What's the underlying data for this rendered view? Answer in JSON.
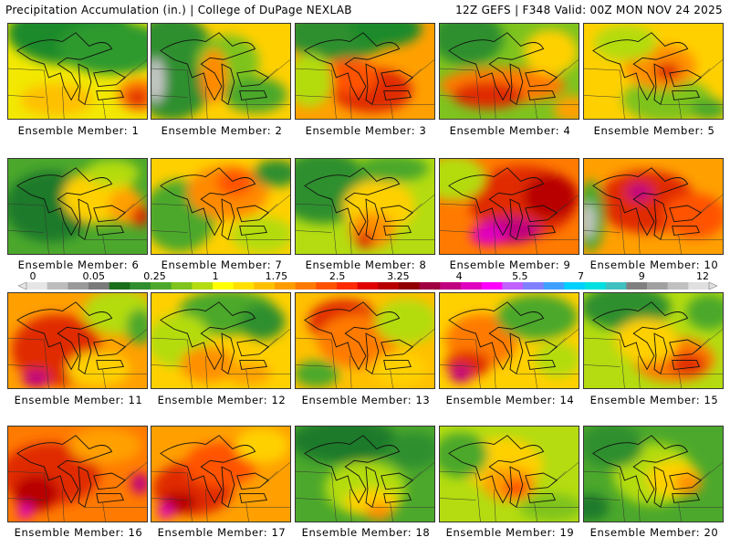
{
  "header": {
    "left": "Precipitation Accumulation (in.) | College of DuPage NEXLAB",
    "right": "12Z GEFS | F348 Valid: 00Z MON NOV 24 2025"
  },
  "colorbar": {
    "labels": [
      "0",
      "0.05",
      "0.25",
      "1",
      "1.75",
      "2.5",
      "3.25",
      "4",
      "5.5",
      "7",
      "9",
      "12"
    ],
    "colors": [
      "#e6e6e6",
      "#bdbdbd",
      "#9a9a9a",
      "#7a7a7a",
      "#1a6e1a",
      "#2f8f2f",
      "#4ca82c",
      "#7ec31e",
      "#b4dc10",
      "#ffff00",
      "#ffe000",
      "#ffc000",
      "#ff9d00",
      "#ff7a00",
      "#ff5200",
      "#ff2a00",
      "#e00000",
      "#b80000",
      "#900000",
      "#a00040",
      "#c0007f",
      "#e000c0",
      "#ff00ff",
      "#c060ff",
      "#8080ff",
      "#40a0ff",
      "#00d0ff",
      "#00e0e0",
      "#40c0c0",
      "#808080",
      "#a0a0a0",
      "#c0c0c0",
      "#e0e0e0"
    ]
  },
  "panels": [
    {
      "label": "Ensemble Member: 1",
      "base": "#f2e800",
      "blobs": [
        [
          "#1f8a2a",
          0.45,
          0.1,
          70,
          35
        ],
        [
          "#2f9a2f",
          0.75,
          0.25,
          60,
          30
        ],
        [
          "#ff7a00",
          0.95,
          0.75,
          25,
          18
        ],
        [
          "#e02a00",
          0.93,
          0.78,
          12,
          10
        ],
        [
          "#ffc000",
          0.35,
          0.8,
          40,
          18
        ]
      ]
    },
    {
      "label": "Ensemble Member: 2",
      "base": "#ffd000",
      "blobs": [
        [
          "#2f8f2f",
          0.15,
          0.45,
          50,
          60
        ],
        [
          "#c8c8c8",
          0.03,
          0.6,
          10,
          25
        ],
        [
          "#7ec31e",
          0.55,
          0.4,
          35,
          30
        ],
        [
          "#ff8a00",
          0.45,
          0.55,
          15,
          30
        ],
        [
          "#4ca82c",
          0.75,
          0.75,
          35,
          20
        ]
      ]
    },
    {
      "label": "Ensemble Member: 3",
      "base": "#ffa000",
      "blobs": [
        [
          "#2f8f2f",
          0.3,
          0.1,
          60,
          30
        ],
        [
          "#1f8a2a",
          0.65,
          0.05,
          40,
          20
        ],
        [
          "#e02a00",
          0.55,
          0.7,
          45,
          25
        ],
        [
          "#ff5200",
          0.4,
          0.55,
          30,
          20
        ],
        [
          "#b4dc10",
          0.1,
          0.6,
          25,
          30
        ]
      ]
    },
    {
      "label": "Ensemble Member: 4",
      "base": "#7ec31e",
      "blobs": [
        [
          "#ff7a00",
          0.45,
          0.65,
          70,
          20
        ],
        [
          "#e02a00",
          0.35,
          0.75,
          40,
          15
        ],
        [
          "#2f8f2f",
          0.2,
          0.15,
          40,
          30
        ],
        [
          "#ffd000",
          0.8,
          0.3,
          30,
          25
        ],
        [
          "#ffa000",
          0.95,
          0.9,
          20,
          15
        ]
      ]
    },
    {
      "label": "Ensemble Member: 5",
      "base": "#ffd000",
      "blobs": [
        [
          "#7ec31e",
          0.6,
          0.8,
          50,
          25
        ],
        [
          "#ff9000",
          0.55,
          0.45,
          40,
          25
        ],
        [
          "#e02a00",
          0.6,
          0.5,
          15,
          10
        ],
        [
          "#b4dc10",
          0.3,
          0.2,
          35,
          20
        ],
        [
          "#4ca82c",
          0.9,
          0.9,
          20,
          12
        ]
      ]
    },
    {
      "label": "Ensemble Member: 6",
      "base": "#4ca82c",
      "blobs": [
        [
          "#1f7a2a",
          0.3,
          0.5,
          50,
          40
        ],
        [
          "#ffd000",
          0.65,
          0.4,
          40,
          30
        ],
        [
          "#ffa000",
          0.85,
          0.5,
          20,
          20
        ],
        [
          "#e02a00",
          0.95,
          0.6,
          10,
          12
        ],
        [
          "#b4dc10",
          0.75,
          0.15,
          30,
          15
        ]
      ]
    },
    {
      "label": "Ensemble Member: 7",
      "base": "#ffd000",
      "blobs": [
        [
          "#4ca82c",
          0.2,
          0.6,
          40,
          40
        ],
        [
          "#ff8a00",
          0.55,
          0.35,
          45,
          30
        ],
        [
          "#ff5200",
          0.6,
          0.25,
          20,
          15
        ],
        [
          "#2f8f2f",
          0.9,
          0.15,
          25,
          15
        ],
        [
          "#b4dc10",
          0.8,
          0.8,
          35,
          20
        ]
      ]
    },
    {
      "label": "Ensemble Member: 8",
      "base": "#b4dc10",
      "blobs": [
        [
          "#2f8f2f",
          0.2,
          0.3,
          55,
          40
        ],
        [
          "#ffd000",
          0.6,
          0.5,
          40,
          30
        ],
        [
          "#ff9000",
          0.55,
          0.75,
          25,
          20
        ],
        [
          "#e02a00",
          0.5,
          0.85,
          10,
          10
        ],
        [
          "#4ca82c",
          0.7,
          0.1,
          40,
          15
        ]
      ]
    },
    {
      "label": "Ensemble Member: 9",
      "base": "#ff7a00",
      "blobs": [
        [
          "#e02a00",
          0.6,
          0.45,
          60,
          40
        ],
        [
          "#c0007f",
          0.5,
          0.75,
          35,
          15
        ],
        [
          "#e000c0",
          0.35,
          0.8,
          20,
          12
        ],
        [
          "#b4dc10",
          0.1,
          0.2,
          35,
          25
        ],
        [
          "#b80000",
          0.8,
          0.4,
          30,
          25
        ]
      ]
    },
    {
      "label": "Ensemble Member: 10",
      "base": "#ffa000",
      "blobs": [
        [
          "#e02a00",
          0.45,
          0.45,
          55,
          35
        ],
        [
          "#c0007f",
          0.4,
          0.35,
          15,
          10
        ],
        [
          "#4ca82c",
          0.05,
          0.6,
          15,
          40
        ],
        [
          "#c8c8c8",
          0.03,
          0.65,
          8,
          20
        ],
        [
          "#ff5200",
          0.8,
          0.6,
          35,
          25
        ]
      ]
    },
    {
      "label": "Ensemble Member: 11",
      "base": "#ffa000",
      "blobs": [
        [
          "#e02a00",
          0.35,
          0.6,
          50,
          40
        ],
        [
          "#c0007f",
          0.2,
          0.9,
          15,
          10
        ],
        [
          "#b4dc10",
          0.8,
          0.2,
          40,
          25
        ],
        [
          "#ffd000",
          0.65,
          0.8,
          35,
          20
        ],
        [
          "#4ca82c",
          0.95,
          0.35,
          15,
          20
        ]
      ]
    },
    {
      "label": "Ensemble Member: 12",
      "base": "#ffd000",
      "blobs": [
        [
          "#4ca82c",
          0.55,
          0.2,
          55,
          25
        ],
        [
          "#b4dc10",
          0.2,
          0.5,
          35,
          30
        ],
        [
          "#ff9000",
          0.4,
          0.75,
          30,
          20
        ],
        [
          "#2f8f2f",
          0.8,
          0.3,
          25,
          20
        ],
        [
          "#ffa000",
          0.7,
          0.85,
          25,
          12
        ]
      ]
    },
    {
      "label": "Ensemble Member: 13",
      "base": "#ffc000",
      "blobs": [
        [
          "#e02a00",
          0.35,
          0.3,
          40,
          25
        ],
        [
          "#ff7a00",
          0.45,
          0.5,
          45,
          30
        ],
        [
          "#b4dc10",
          0.8,
          0.3,
          35,
          25
        ],
        [
          "#4ca82c",
          0.15,
          0.85,
          25,
          15
        ],
        [
          "#ffd000",
          0.75,
          0.8,
          30,
          20
        ]
      ]
    },
    {
      "label": "Ensemble Member: 14",
      "base": "#ffd000",
      "blobs": [
        [
          "#ff7a00",
          0.3,
          0.5,
          40,
          30
        ],
        [
          "#e02a00",
          0.2,
          0.75,
          25,
          15
        ],
        [
          "#c0007f",
          0.15,
          0.85,
          12,
          10
        ],
        [
          "#4ca82c",
          0.7,
          0.25,
          45,
          25
        ],
        [
          "#b4dc10",
          0.85,
          0.7,
          25,
          20
        ]
      ]
    },
    {
      "label": "Ensemble Member: 15",
      "base": "#b4dc10",
      "blobs": [
        [
          "#2f8f2f",
          0.3,
          0.15,
          50,
          25
        ],
        [
          "#ff7a00",
          0.65,
          0.7,
          45,
          25
        ],
        [
          "#e02a00",
          0.75,
          0.75,
          20,
          12
        ],
        [
          "#ffd000",
          0.45,
          0.5,
          35,
          25
        ],
        [
          "#4ca82c",
          0.9,
          0.2,
          25,
          20
        ]
      ]
    },
    {
      "label": "Ensemble Member: 16",
      "base": "#ff7a00",
      "blobs": [
        [
          "#e02a00",
          0.3,
          0.5,
          55,
          35
        ],
        [
          "#b80000",
          0.2,
          0.7,
          25,
          20
        ],
        [
          "#c0007f",
          0.95,
          0.6,
          10,
          12
        ],
        [
          "#e000c0",
          0.12,
          0.9,
          8,
          8
        ],
        [
          "#ffa000",
          0.7,
          0.2,
          40,
          20
        ]
      ]
    },
    {
      "label": "Ensemble Member: 17",
      "base": "#ffa000",
      "blobs": [
        [
          "#e02a00",
          0.3,
          0.65,
          45,
          30
        ],
        [
          "#ff5200",
          0.5,
          0.4,
          40,
          25
        ],
        [
          "#b80000",
          0.2,
          0.8,
          20,
          12
        ],
        [
          "#e000c0",
          0.1,
          0.9,
          8,
          8
        ],
        [
          "#ffd000",
          0.8,
          0.2,
          30,
          20
        ]
      ]
    },
    {
      "label": "Ensemble Member: 18",
      "base": "#4ca82c",
      "blobs": [
        [
          "#1f7a2a",
          0.35,
          0.15,
          60,
          25
        ],
        [
          "#b4dc10",
          0.5,
          0.65,
          45,
          30
        ],
        [
          "#ffd000",
          0.55,
          0.8,
          30,
          15
        ],
        [
          "#ff9000",
          0.6,
          0.9,
          15,
          10
        ],
        [
          "#2f8f2f",
          0.85,
          0.25,
          30,
          20
        ]
      ]
    },
    {
      "label": "Ensemble Member: 19",
      "base": "#b4dc10",
      "blobs": [
        [
          "#ffd000",
          0.45,
          0.4,
          45,
          30
        ],
        [
          "#ffa000",
          0.5,
          0.6,
          30,
          20
        ],
        [
          "#ff5200",
          0.55,
          0.65,
          15,
          10
        ],
        [
          "#4ca82c",
          0.15,
          0.3,
          30,
          25
        ],
        [
          "#7ec31e",
          0.8,
          0.85,
          35,
          15
        ]
      ]
    },
    {
      "label": "Ensemble Member: 20",
      "base": "#4ca82c",
      "blobs": [
        [
          "#b4dc10",
          0.5,
          0.5,
          45,
          35
        ],
        [
          "#ffd000",
          0.65,
          0.55,
          30,
          20
        ],
        [
          "#ff9000",
          0.75,
          0.6,
          15,
          12
        ],
        [
          "#2f8f2f",
          0.2,
          0.2,
          35,
          25
        ],
        [
          "#1f7a2a",
          0.05,
          0.85,
          20,
          15
        ]
      ]
    }
  ]
}
